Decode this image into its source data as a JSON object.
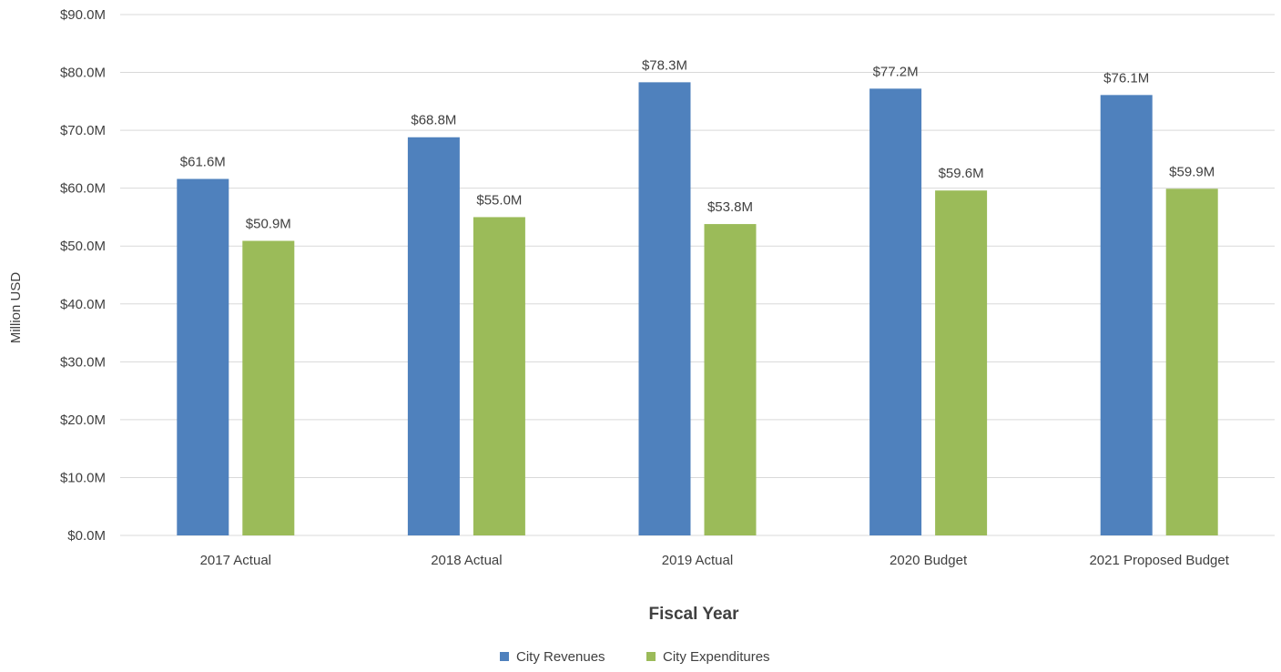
{
  "chart_data": {
    "type": "bar",
    "categories": [
      "2017 Actual",
      "2018 Actual",
      "2019 Actual",
      "2020 Budget",
      "2021 Proposed Budget"
    ],
    "series": [
      {
        "name": "City Revenues",
        "values": [
          61.6,
          68.8,
          78.3,
          77.2,
          76.1
        ],
        "labels": [
          "$61.6M",
          "$68.8M",
          "$78.3M",
          "$77.2M",
          "$76.1M"
        ]
      },
      {
        "name": "City Expenditures",
        "values": [
          50.9,
          55.0,
          53.8,
          59.6,
          59.9
        ],
        "labels": [
          "$50.9M",
          "$55.0M",
          "$53.8M",
          "$59.6M",
          "$59.9M"
        ]
      }
    ],
    "colors": [
      "#4f81bd",
      "#9bbb59"
    ],
    "xlabel": "Fiscal Year",
    "ylabel": "Million USD",
    "ylim": [
      0,
      90
    ],
    "yticks": [
      0,
      10,
      20,
      30,
      40,
      50,
      60,
      70,
      80,
      90
    ],
    "ytick_labels": [
      "$0.0M",
      "$10.0M",
      "$20.0M",
      "$30.0M",
      "$40.0M",
      "$50.0M",
      "$60.0M",
      "$70.0M",
      "$80.0M",
      "$90.0M"
    ],
    "grid": true,
    "legend_position": "bottom"
  }
}
